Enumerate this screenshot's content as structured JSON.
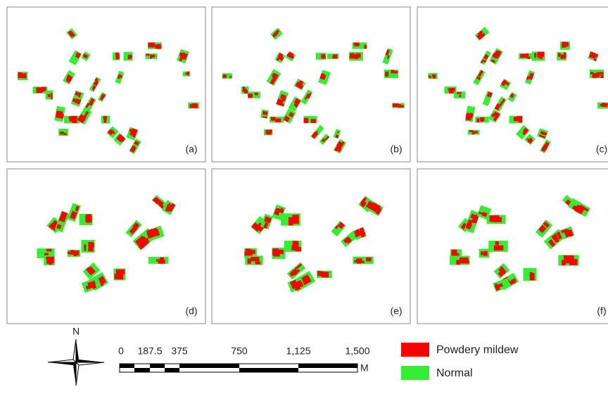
{
  "panels": [
    {
      "label": "(a)"
    },
    {
      "label": "(b)"
    },
    {
      "label": "(c)"
    },
    {
      "label": "(d)"
    },
    {
      "label": "(e)"
    },
    {
      "label": "(f)"
    }
  ],
  "north_arrow": {
    "label": "N"
  },
  "scale_bar": {
    "labels": [
      "0",
      "187.5",
      "375",
      "750",
      "1,125",
      "1,500"
    ],
    "unit": "M"
  },
  "legend": [
    {
      "label": "Powdery mildew",
      "color": "#ff0000"
    },
    {
      "label": "Normal",
      "color": "#33ee33"
    }
  ]
}
